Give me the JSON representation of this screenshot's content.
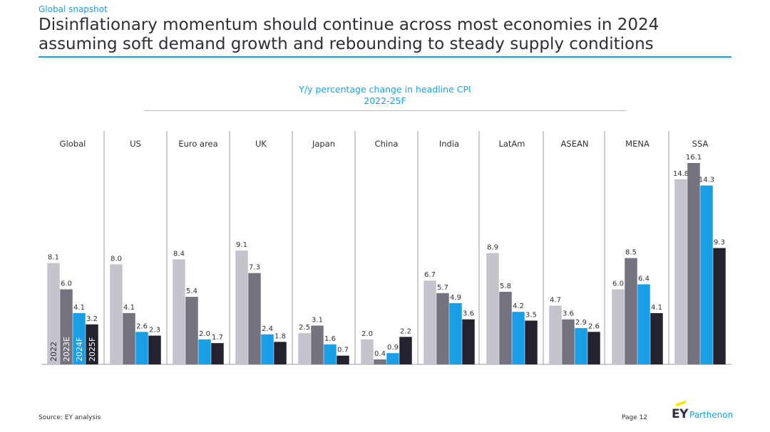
{
  "header": {
    "kicker": "Global snapshot",
    "title": "Disinflationary momentum should continue across most economies in 2024 assuming soft demand growth and rebounding to steady supply conditions"
  },
  "chart_data": {
    "type": "bar",
    "title": "Y/y percentage change in headline CPI",
    "subtitle": "2022-25F",
    "categories": [
      "Global",
      "US",
      "Euro area",
      "UK",
      "Japan",
      "China",
      "India",
      "LatAm",
      "ASEAN",
      "MENA",
      "SSA"
    ],
    "series": [
      {
        "name": "2022",
        "color": "#c4c4cd",
        "values": [
          8.1,
          8.0,
          8.4,
          9.1,
          2.5,
          2.0,
          6.7,
          8.9,
          4.7,
          6.0,
          14.8
        ]
      },
      {
        "name": "2023E",
        "color": "#747480",
        "values": [
          6.0,
          4.1,
          5.4,
          7.3,
          3.1,
          0.4,
          5.7,
          5.8,
          3.6,
          8.5,
          16.1
        ]
      },
      {
        "name": "2024F",
        "color": "#1a9fe6",
        "values": [
          4.1,
          2.6,
          2.0,
          2.4,
          1.6,
          0.9,
          4.9,
          4.2,
          2.9,
          6.4,
          14.3
        ]
      },
      {
        "name": "2025F",
        "color": "#23232f",
        "values": [
          3.2,
          2.3,
          1.7,
          1.8,
          0.7,
          2.2,
          3.6,
          3.5,
          2.6,
          4.1,
          9.3
        ]
      }
    ],
    "value_labels": [
      [
        "8.1",
        "6.0",
        "4.1",
        "3.2"
      ],
      [
        "8.0",
        "4.1",
        "2.6",
        "2.3"
      ],
      [
        "8.4",
        "5.4",
        "2.0",
        "1.7"
      ],
      [
        "9.1",
        "7.3",
        "2.4",
        "1.8"
      ],
      [
        "2.5",
        "3.1",
        "1.6",
        "0.7"
      ],
      [
        "2.0",
        "0.4",
        "0.9",
        "2.2"
      ],
      [
        "6.7",
        "5.7",
        "4.9",
        "3.6"
      ],
      [
        "8.9",
        "5.8",
        "4.2",
        "3.5"
      ],
      [
        "4.7",
        "3.6",
        "2.9",
        "2.6"
      ],
      [
        "6.0",
        "8.5",
        "6.4",
        "4.1"
      ],
      [
        "14.8",
        "16.1",
        "14.3",
        "9.3"
      ]
    ],
    "ylim": [
      0,
      16.1
    ],
    "legend": "series names printed vertically inside the Global bars",
    "grid": false
  },
  "footer": {
    "source": "Source: EY analysis",
    "page": "Page 12",
    "logo_mark": "EY",
    "logo_name": "Parthenon"
  }
}
